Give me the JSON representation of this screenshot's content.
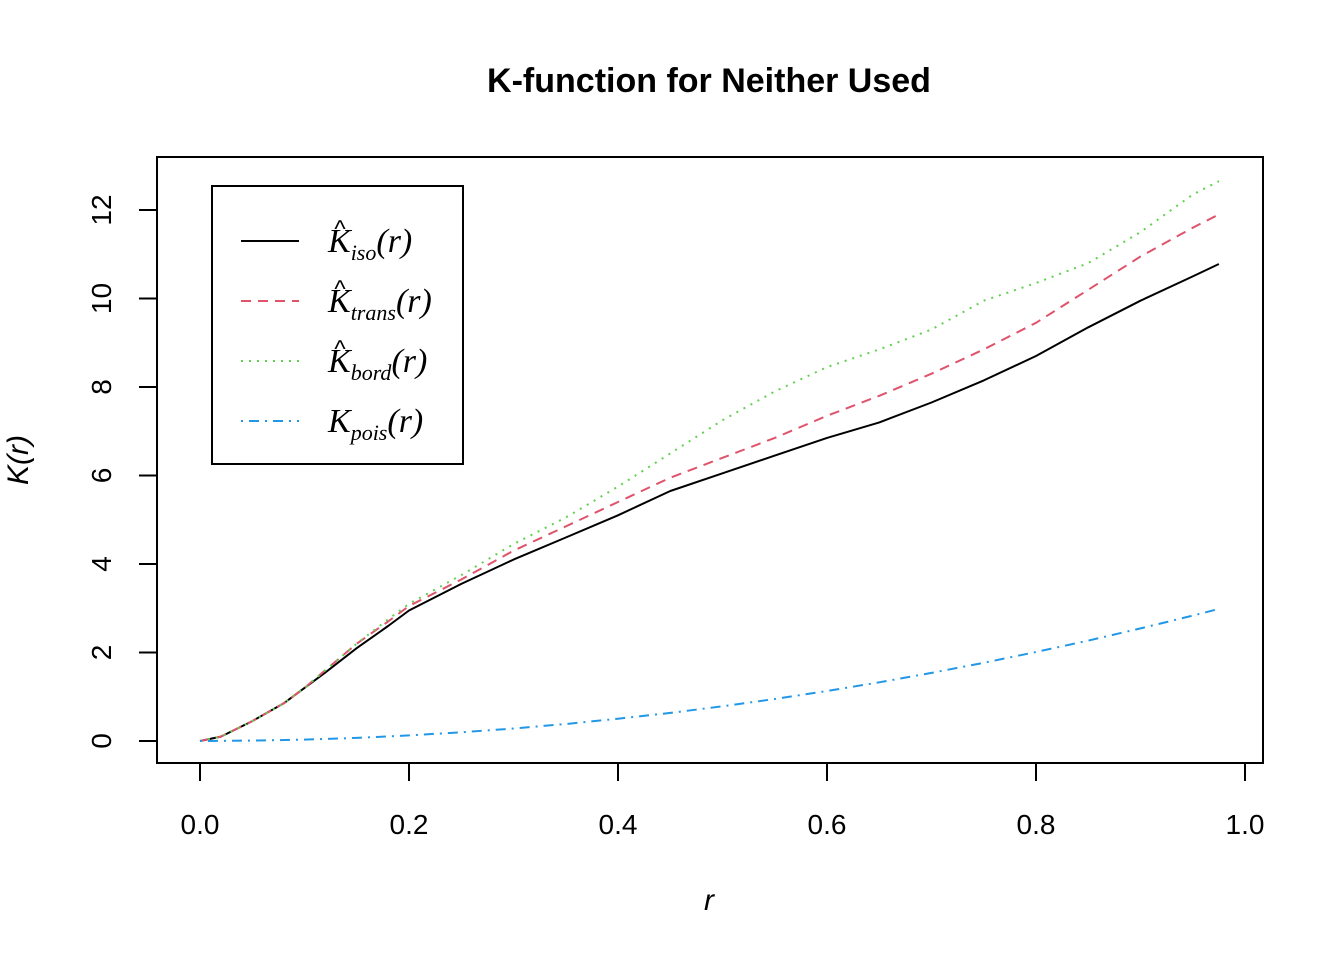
{
  "chart_data": {
    "type": "line",
    "title": "K-function for Neither Used",
    "xlabel": "r",
    "ylabel": "K(r)",
    "xlim": [
      0,
      1.0
    ],
    "ylim": [
      0,
      12.7
    ],
    "x_ticks": [
      "0.0",
      "0.2",
      "0.4",
      "0.6",
      "0.8",
      "1.0"
    ],
    "y_ticks": [
      "0",
      "2",
      "4",
      "6",
      "8",
      "10",
      "12"
    ],
    "x_tick_values": [
      0,
      0.2,
      0.4,
      0.6,
      0.8,
      1.0
    ],
    "y_tick_values": [
      0,
      2,
      4,
      6,
      8,
      10,
      12
    ],
    "legend_position": "top-left",
    "grid": false,
    "series": [
      {
        "name": "iso",
        "legend_base": "K",
        "legend_sub": "iso",
        "legend_hat": true,
        "legend_arg": "(r)",
        "color": "#000000",
        "dash": "solid",
        "x": [
          0,
          0.02,
          0.05,
          0.08,
          0.1,
          0.12,
          0.15,
          0.18,
          0.2,
          0.25,
          0.3,
          0.35,
          0.4,
          0.45,
          0.5,
          0.55,
          0.6,
          0.65,
          0.7,
          0.75,
          0.8,
          0.85,
          0.9,
          0.95,
          0.975
        ],
        "y": [
          0,
          0.1,
          0.45,
          0.85,
          1.2,
          1.55,
          2.1,
          2.6,
          2.95,
          3.55,
          4.1,
          4.6,
          5.1,
          5.65,
          6.05,
          6.45,
          6.85,
          7.2,
          7.65,
          8.15,
          8.7,
          9.35,
          9.95,
          10.5,
          10.78
        ]
      },
      {
        "name": "trans",
        "legend_base": "K",
        "legend_sub": "trans",
        "legend_hat": true,
        "legend_arg": "(r)",
        "color": "#DF536B",
        "dash": "dashed",
        "x": [
          0,
          0.02,
          0.05,
          0.08,
          0.1,
          0.12,
          0.15,
          0.18,
          0.2,
          0.25,
          0.3,
          0.35,
          0.4,
          0.45,
          0.5,
          0.55,
          0.6,
          0.65,
          0.7,
          0.75,
          0.8,
          0.85,
          0.9,
          0.95,
          0.975
        ],
        "y": [
          0,
          0.1,
          0.45,
          0.85,
          1.2,
          1.6,
          2.2,
          2.7,
          3.05,
          3.65,
          4.3,
          4.85,
          5.4,
          5.95,
          6.4,
          6.85,
          7.35,
          7.8,
          8.3,
          8.85,
          9.45,
          10.2,
          10.95,
          11.6,
          11.9
        ]
      },
      {
        "name": "bord",
        "legend_base": "K",
        "legend_sub": "bord",
        "legend_hat": true,
        "legend_arg": "(r)",
        "color": "#61D04F",
        "dash": "dotted",
        "x": [
          0,
          0.02,
          0.05,
          0.08,
          0.1,
          0.12,
          0.15,
          0.18,
          0.2,
          0.25,
          0.3,
          0.35,
          0.4,
          0.45,
          0.5,
          0.55,
          0.6,
          0.65,
          0.7,
          0.75,
          0.8,
          0.85,
          0.9,
          0.95,
          0.975
        ],
        "y": [
          0,
          0.1,
          0.45,
          0.85,
          1.2,
          1.6,
          2.2,
          2.75,
          3.1,
          3.75,
          4.45,
          5.05,
          5.75,
          6.5,
          7.25,
          7.9,
          8.45,
          8.85,
          9.3,
          9.95,
          10.35,
          10.8,
          11.5,
          12.35,
          12.65
        ]
      },
      {
        "name": "pois",
        "legend_base": "K",
        "legend_sub": "pois",
        "legend_hat": false,
        "legend_arg": "(r)",
        "color": "#2297E6",
        "dash": "dotdash",
        "x": [
          0,
          0.05,
          0.1,
          0.15,
          0.2,
          0.25,
          0.3,
          0.35,
          0.4,
          0.45,
          0.5,
          0.55,
          0.6,
          0.65,
          0.7,
          0.75,
          0.8,
          0.85,
          0.9,
          0.95,
          0.975
        ],
        "y": [
          0,
          0.008,
          0.031,
          0.071,
          0.126,
          0.196,
          0.283,
          0.385,
          0.503,
          0.636,
          0.785,
          0.95,
          1.131,
          1.327,
          1.539,
          1.767,
          2.011,
          2.27,
          2.545,
          2.835,
          2.986
        ]
      }
    ]
  }
}
